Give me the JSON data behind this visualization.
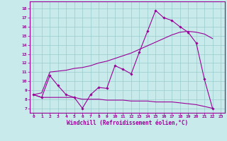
{
  "xlabel": "Windchill (Refroidissement éolien,°C)",
  "x_ticks": [
    0,
    1,
    2,
    3,
    4,
    5,
    6,
    7,
    8,
    9,
    10,
    11,
    12,
    13,
    14,
    15,
    16,
    17,
    18,
    19,
    20,
    21,
    22,
    23
  ],
  "y_ticks": [
    7,
    8,
    9,
    10,
    11,
    12,
    13,
    14,
    15,
    16,
    17,
    18
  ],
  "ylim": [
    6.5,
    18.8
  ],
  "xlim": [
    -0.5,
    23.5
  ],
  "bg_color": "#c8eaea",
  "line_color": "#990099",
  "grid_color": "#99cccc",
  "line1_y": [
    8.5,
    8.2,
    10.6,
    9.5,
    8.5,
    8.2,
    7.0,
    8.5,
    9.3,
    9.2,
    11.7,
    11.3,
    10.8,
    13.2,
    15.5,
    17.8,
    17.0,
    16.7,
    16.0,
    15.4,
    14.2,
    10.2,
    7.0
  ],
  "line2_y": [
    8.5,
    8.7,
    11.0,
    11.1,
    11.2,
    11.4,
    11.5,
    11.7,
    12.0,
    12.2,
    12.5,
    12.8,
    13.1,
    13.5,
    13.9,
    14.3,
    14.7,
    15.1,
    15.4,
    15.5,
    15.4,
    15.2,
    14.7
  ],
  "line3_y": [
    8.5,
    8.2,
    8.2,
    8.2,
    8.2,
    8.2,
    8.0,
    8.0,
    8.0,
    7.9,
    7.9,
    7.9,
    7.8,
    7.8,
    7.8,
    7.7,
    7.7,
    7.7,
    7.6,
    7.5,
    7.4,
    7.2,
    7.0
  ]
}
